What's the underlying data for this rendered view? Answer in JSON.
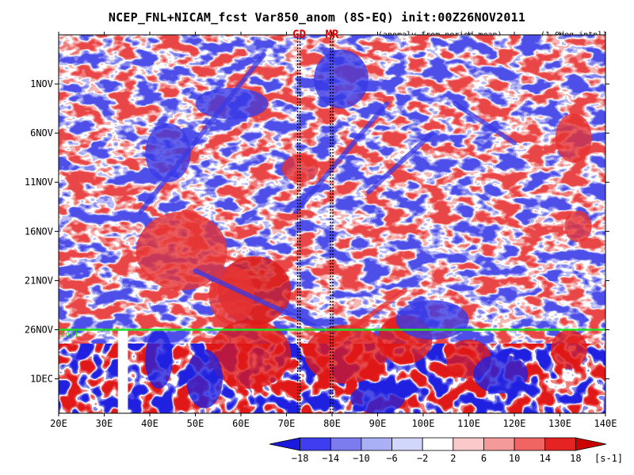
{
  "chart_data": {
    "type": "heatmap",
    "title": "NCEP_FNL+NICAM_fcst Var850_anom (8S-EQ) init:00Z26NOV2011",
    "subtitle_left": "(anomaly from period mean)",
    "subtitle_right": "(1.0deg intpl)",
    "x_tick_labels": [
      "20E",
      "30E",
      "40E",
      "50E",
      "60E",
      "70E",
      "80E",
      "90E",
      "100E",
      "110E",
      "120E",
      "130E",
      "140E"
    ],
    "x_tick_values": [
      20,
      30,
      40,
      50,
      60,
      70,
      80,
      90,
      100,
      110,
      120,
      130,
      140
    ],
    "xlim": [
      20,
      140
    ],
    "y_tick_labels": [
      "1NOV",
      "6NOV",
      "11NOV",
      "16NOV",
      "21NOV",
      "26NOV",
      "1DEC"
    ],
    "y_tick_days": [
      1,
      6,
      11,
      16,
      21,
      26,
      31
    ],
    "ylim_days": [
      -4,
      34.5
    ],
    "y_direction": "time increases downward",
    "init_line": {
      "day": 26,
      "color": "#22dd22",
      "label": "init"
    },
    "markers": [
      {
        "label": "GD",
        "lon": 72.8,
        "color": "#e00000"
      },
      {
        "label": "MR",
        "lon": 80.0,
        "color": "#e00000"
      }
    ],
    "missing_band_lon": [
      33.0,
      35.2
    ],
    "missing_band_days": [
      26,
      34.5
    ],
    "colorbar": {
      "levels": [
        -18,
        -14,
        -10,
        -6,
        -2,
        2,
        6,
        10,
        14,
        18
      ],
      "tick_labels": [
        "−18",
        "−14",
        "−10",
        "−6",
        "−2",
        "2",
        "6",
        "10",
        "14",
        "18"
      ],
      "unit": "[s-1]",
      "colors": [
        "#1a1adc",
        "#3e3ef0",
        "#7c7cf0",
        "#aab0f5",
        "#d3d6fb",
        "#ffffff",
        "#fbc9c9",
        "#f59a9a",
        "#f06464",
        "#e62323",
        "#cc0000"
      ]
    }
  }
}
